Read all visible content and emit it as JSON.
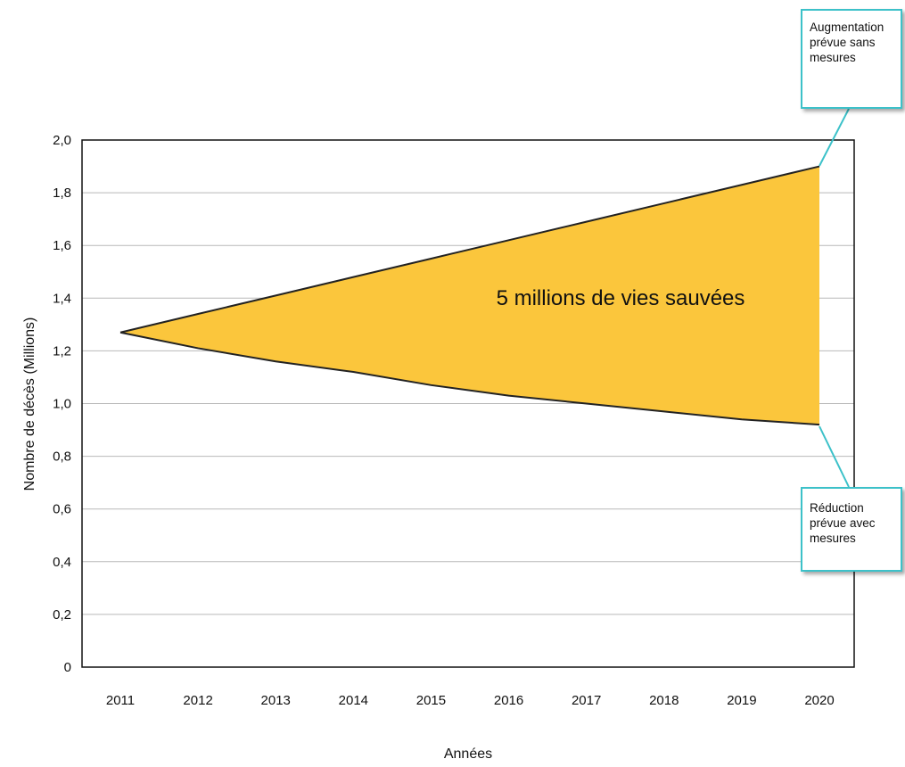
{
  "chart_data": {
    "type": "area",
    "ylabel": "Nombre de décès (Millions)",
    "xlabel": "Années",
    "x": [
      "2011",
      "2012",
      "2013",
      "2014",
      "2015",
      "2016",
      "2017",
      "2018",
      "2019",
      "2020"
    ],
    "y_ticks": [
      "0",
      "0,2",
      "0,4",
      "0,6",
      "0,8",
      "1,0",
      "1,2",
      "1,4",
      "1,6",
      "1,8",
      "2,0"
    ],
    "ylim": [
      0,
      2.0
    ],
    "series": [
      {
        "values": [
          1.27,
          1.34,
          1.41,
          1.48,
          1.55,
          1.62,
          1.69,
          1.76,
          1.83,
          1.9
        ]
      },
      {
        "values": [
          1.27,
          1.21,
          1.16,
          1.12,
          1.07,
          1.03,
          1.0,
          0.97,
          0.94,
          0.92
        ]
      }
    ],
    "grid": true,
    "fill_color": "#fbc63c",
    "annotations": {
      "area_label": "5 millions de vies sauvées",
      "upper": [
        "Augmentation",
        "prévue sans",
        "mesures"
      ],
      "lower": [
        "Réduction",
        "prévue avec",
        "mesures"
      ]
    },
    "callout_border_color": "#3cc1c9"
  }
}
